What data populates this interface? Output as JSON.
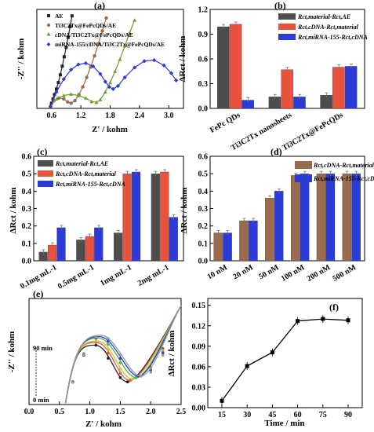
{
  "colors": {
    "black": "#4d4d4d",
    "red": "#e8523e",
    "blue": "#2b3bd8",
    "brown": "#9c6b4e",
    "olive": "#8a8a2e",
    "green": "#4db34d",
    "grey": "#999999",
    "lightblue": "#55aadd",
    "yellow": "#d0c030"
  },
  "chart_data": [
    {
      "panel": "(a)",
      "type": "scatter",
      "xlabel": "Z' / kohm",
      "ylabel": "-Z'' / kohm",
      "xlim": [
        0.3,
        3.3
      ],
      "xticks": [
        0.6,
        1.2,
        1.8,
        2.4,
        3.0
      ],
      "legend_position": "top",
      "series": [
        {
          "name": "AE",
          "color": "#222222",
          "marker": "square",
          "points": [
            [
              0.58,
              0.03
            ],
            [
              0.6,
              0.12
            ],
            [
              0.63,
              0.22
            ],
            [
              0.66,
              0.32
            ],
            [
              0.7,
              0.45
            ],
            [
              0.74,
              0.6
            ],
            [
              0.78,
              0.78
            ],
            [
              0.82,
              0.98
            ],
            [
              0.86,
              1.2
            ],
            [
              0.9,
              1.42
            ],
            [
              0.94,
              1.65
            ],
            [
              0.98,
              1.9
            ],
            [
              1.02,
              2.15
            ]
          ]
        },
        {
          "name": "Ti3C2Tx@FePcQDs/AE",
          "color": "#9c6b4e",
          "marker": "circle",
          "points": [
            [
              0.58,
              0.05
            ],
            [
              0.65,
              0.18
            ],
            [
              0.75,
              0.24
            ],
            [
              0.85,
              0.22
            ],
            [
              0.93,
              0.15
            ],
            [
              1.0,
              0.12
            ],
            [
              1.08,
              0.18
            ],
            [
              1.16,
              0.32
            ],
            [
              1.24,
              0.5
            ],
            [
              1.32,
              0.72
            ],
            [
              1.4,
              0.96
            ],
            [
              1.48,
              1.22
            ],
            [
              1.56,
              1.5
            ],
            [
              1.64,
              1.8
            ],
            [
              1.72,
              2.1
            ]
          ]
        },
        {
          "name": "cDNA/Ti3C2Tx@FePcQDs/AE",
          "color": "#6d9e2a",
          "marker": "triangle",
          "points": [
            [
              0.58,
              0.05
            ],
            [
              0.7,
              0.22
            ],
            [
              0.85,
              0.3
            ],
            [
              1.0,
              0.33
            ],
            [
              1.15,
              0.3
            ],
            [
              1.3,
              0.24
            ],
            [
              1.42,
              0.16
            ],
            [
              1.52,
              0.14
            ],
            [
              1.6,
              0.2
            ],
            [
              1.7,
              0.38
            ],
            [
              1.8,
              0.6
            ],
            [
              1.9,
              0.86
            ],
            [
              2.0,
              1.14
            ],
            [
              2.1,
              1.45
            ],
            [
              2.2,
              1.76
            ],
            [
              2.3,
              2.05
            ]
          ]
        },
        {
          "name": "miRNA-155/cDNA/Ti3C2Tx@FePcQDs/AE",
          "color": "#2b3bd8",
          "marker": "diamond",
          "points": [
            [
              0.58,
              0.05
            ],
            [
              0.7,
              0.38
            ],
            [
              0.85,
              0.68
            ],
            [
              1.0,
              0.9
            ],
            [
              1.15,
              1.02
            ],
            [
              1.3,
              1.05
            ],
            [
              1.45,
              0.98
            ],
            [
              1.6,
              0.8
            ],
            [
              1.7,
              0.62
            ],
            [
              1.78,
              0.5
            ],
            [
              1.86,
              0.45
            ],
            [
              1.96,
              0.52
            ],
            [
              2.1,
              0.72
            ],
            [
              2.3,
              0.95
            ],
            [
              2.5,
              1.1
            ],
            [
              2.7,
              1.12
            ],
            [
              2.9,
              1.0
            ],
            [
              3.05,
              0.82
            ],
            [
              3.15,
              0.65
            ]
          ]
        }
      ]
    },
    {
      "panel": "(b)",
      "type": "bar",
      "ylabel": "ΔRct / kohm",
      "ylim": [
        0.0,
        1.2
      ],
      "yticks": [
        0.0,
        0.3,
        0.6,
        0.9,
        1.2
      ],
      "categories": [
        "FePc QDs",
        "Ti3C2Tx nanosheets",
        "Ti3C2Tx@FePcQDs"
      ],
      "series": [
        {
          "name": "Rct,material - Rct,AE",
          "color": "#4d4d4d",
          "values": [
            0.99,
            0.14,
            0.16
          ]
        },
        {
          "name": "Rct,cDNA - Rct,material",
          "color": "#e8523e",
          "values": [
            1.02,
            0.47,
            0.5
          ]
        },
        {
          "name": "Rct,miRNA-155 - Rct,cDNA",
          "color": "#2b3bd8",
          "values": [
            0.1,
            0.14,
            0.51
          ]
        }
      ]
    },
    {
      "panel": "(c)",
      "type": "bar",
      "ylabel": "ΔRct / kohm",
      "ylim": [
        0.0,
        0.6
      ],
      "yticks": [
        0.0,
        0.1,
        0.2,
        0.3,
        0.4,
        0.5,
        0.6
      ],
      "categories": [
        "0.1mg mL-1",
        "0.5mg mL-1",
        "1mg mL-1",
        "2mg mL-1"
      ],
      "series": [
        {
          "name": "Rct,material - Rct,AE",
          "color": "#4d4d4d",
          "values": [
            0.05,
            0.12,
            0.16,
            0.5
          ]
        },
        {
          "name": "Rct,cDNA - Rct,material",
          "color": "#e8523e",
          "values": [
            0.09,
            0.14,
            0.5,
            0.51
          ]
        },
        {
          "name": "Rct,miRNA-155 - Rct,cDNA",
          "color": "#2b3bd8",
          "values": [
            0.19,
            0.19,
            0.51,
            0.25
          ]
        }
      ]
    },
    {
      "panel": "(d)",
      "type": "bar",
      "ylabel": "ΔRct / kohm",
      "ylim": [
        0.0,
        0.6
      ],
      "yticks": [
        0.0,
        0.1,
        0.2,
        0.3,
        0.4,
        0.5,
        0.6
      ],
      "categories": [
        "10 nM",
        "20 nM",
        "50 nM",
        "100 nM",
        "200 nM",
        "500 nM"
      ],
      "series": [
        {
          "name": "Rct,cDNA - Rct,material",
          "color": "#9c6b4e",
          "values": [
            0.16,
            0.23,
            0.36,
            0.49,
            0.5,
            0.5
          ]
        },
        {
          "name": "Rct,miRNA-155 - Rct,cDNA",
          "color": "#2b3bd8",
          "values": [
            0.16,
            0.23,
            0.4,
            0.5,
            0.5,
            0.5
          ]
        }
      ]
    },
    {
      "panel": "(e)",
      "type": "line",
      "xlabel": "Z' / kohm",
      "ylabel": "-Z'' / kohm",
      "xlim": [
        0.0,
        2.5
      ],
      "xticks": [
        0.0,
        0.5,
        1.0,
        1.5,
        2.0,
        2.5
      ],
      "annotations": [
        "90 min",
        "0 min"
      ],
      "series": [
        {
          "color": "#222222",
          "peak": [
            1.08,
            0.42
          ],
          "valley": [
            1.62,
            0.16
          ]
        },
        {
          "color": "#e8523e",
          "peak": [
            1.1,
            0.44
          ],
          "valley": [
            1.66,
            0.17
          ]
        },
        {
          "color": "#d0c030",
          "peak": [
            1.12,
            0.45
          ],
          "valley": [
            1.7,
            0.18
          ]
        },
        {
          "color": "#4db34d",
          "peak": [
            1.14,
            0.47
          ],
          "valley": [
            1.76,
            0.19
          ]
        },
        {
          "color": "#2b3bd8",
          "peak": [
            1.16,
            0.48
          ],
          "valley": [
            1.8,
            0.2
          ]
        },
        {
          "color": "#999999",
          "peak": [
            1.18,
            0.49
          ],
          "valley": [
            1.84,
            0.2
          ]
        }
      ]
    },
    {
      "panel": "(f)",
      "type": "line",
      "xlabel": "Time / min",
      "ylabel": "ΔRct / kohm",
      "ylim": [
        0.0,
        0.16
      ],
      "yticks": [
        0.0,
        0.03,
        0.06,
        0.09,
        0.12,
        0.15
      ],
      "categories": [
        "15",
        "30",
        "45",
        "60",
        "75",
        "90"
      ],
      "values": [
        0.01,
        0.061,
        0.081,
        0.127,
        0.13,
        0.128
      ]
    }
  ],
  "labels": {
    "a": {
      "panel": "(a)",
      "ylabel": "-Z'' / kohm",
      "xlabel": "Z' / kohm",
      "ticks": [
        "0.6",
        "1.2",
        "1.8",
        "2.4",
        "3.0"
      ],
      "legend": [
        "AE",
        "Ti3C2Tx@FePcQDs/AE",
        "cDNA/Ti3C2Tx@FePcQDs/AE",
        "miRNA-155/cDNA/Ti3C2Tx@FePcQDs/AE"
      ]
    },
    "b": {
      "panel": "(b)",
      "ylabel": "ΔRct / kohm",
      "ticks": [
        "0.0",
        "0.3",
        "0.6",
        "0.9",
        "1.2"
      ],
      "cats": [
        "FePc QDs",
        "Ti3C2Tx nanosheets",
        "Ti3C2Tx@FePcQDs"
      ],
      "legend": [
        "Rct,material-Rct,AE",
        "Rct,cDNA-Rct,material",
        "Rct,miRNA-155-Rct,cDNA"
      ]
    },
    "c": {
      "panel": "(c)",
      "ylabel": "ΔRct / kohm",
      "ticks": [
        "0.0",
        "0.1",
        "0.2",
        "0.3",
        "0.4",
        "0.5",
        "0.6"
      ],
      "cats": [
        "0.1mg mL-1",
        "0.5mg mL-1",
        "1mg mL-1",
        "2mg mL-1"
      ],
      "legend": [
        "Rct,material-Rct,AE",
        "Rct,cDNA-Rct,material",
        "Rct,miRNA-155-Rct,cDNA"
      ]
    },
    "d": {
      "panel": "(d)",
      "ylabel": "ΔRct / kohm",
      "ticks": [
        "0.0",
        "0.1",
        "0.2",
        "0.3",
        "0.4",
        "0.5",
        "0.6"
      ],
      "cats": [
        "10 nM",
        "20 nM",
        "50 nM",
        "100 nM",
        "200 nM",
        "500 nM"
      ],
      "legend": [
        "Rct,cDNA-Rct,material",
        "Rct,miRNA-155-Rct,cDNA"
      ]
    },
    "e": {
      "panel": "(e)",
      "ylabel": "-Z'' / kohm",
      "xlabel": "Z' / kohm",
      "ticks": [
        "0.0",
        "0.5",
        "1.0",
        "1.5",
        "2.0",
        "2.5"
      ],
      "ann_top": "90 min",
      "ann_bot": "0 min"
    },
    "f": {
      "panel": "(f)",
      "ylabel": "ΔRct / kohm",
      "xlabel": "Time / min",
      "yticks": [
        "0.00",
        "0.03",
        "0.06",
        "0.09",
        "0.12",
        "0.15"
      ],
      "xticks": [
        "15",
        "30",
        "45",
        "60",
        "75",
        "90"
      ]
    }
  }
}
